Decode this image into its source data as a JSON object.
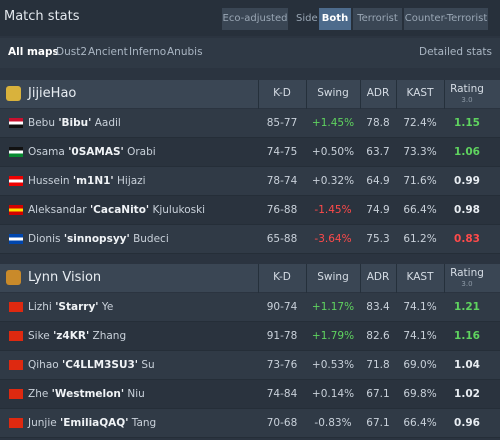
{
  "header": {
    "title": "Match stats",
    "eco": "Eco-adjusted",
    "side": "Side",
    "sides": [
      "Both",
      "Terrorist",
      "Counter-Terrorist"
    ]
  },
  "maps": {
    "items": [
      "All maps",
      "Dust2",
      "Ancient",
      "Inferno",
      "Anubis"
    ],
    "detailed": "Detailed stats"
  },
  "teams": [
    {
      "name": "JijieHao",
      "columns": [
        "K-D",
        "Swing",
        "ADR",
        "KAST",
        "Rating"
      ],
      "rating_version": "3.0",
      "players": [
        {
          "first": "Bebu",
          "nick": "'Bibu'",
          "last": "Aadil",
          "kd": "85-77",
          "swing": "+1.45%",
          "adr": 78.8,
          "kast": "72.4%",
          "rating": 1.15
        },
        {
          "first": "Osama",
          "nick": "'0SAMAS'",
          "last": "Orabi",
          "kd": "74-75",
          "swing": "+0.50%",
          "adr": 63.7,
          "kast": "73.3%",
          "rating": 1.06
        },
        {
          "first": "Hussein",
          "nick": "'m1N1'",
          "last": "Hijazi",
          "kd": "78-74",
          "swing": "+0.32%",
          "adr": 64.9,
          "kast": "71.6%",
          "rating": 0.99
        },
        {
          "first": "Aleksandar",
          "nick": "'CacaNito'",
          "last": "Kjulukoski",
          "kd": "76-88",
          "swing": "-1.45%",
          "adr": 74.9,
          "kast": "66.4%",
          "rating": 0.98
        },
        {
          "first": "Dionis",
          "nick": "'sinnopsyy'",
          "last": "Budeci",
          "kd": "65-88",
          "swing": "-3.64%",
          "adr": 75.3,
          "kast": "61.2%",
          "rating": 0.83
        }
      ]
    },
    {
      "name": "Lynn Vision",
      "columns": [
        "K-D",
        "Swing",
        "ADR",
        "KAST",
        "Rating"
      ],
      "rating_version": "3.0",
      "players": [
        {
          "first": "Lizhi",
          "nick": "'Starry'",
          "last": "Ye",
          "kd": "90-74",
          "swing": "+1.17%",
          "adr": 83.4,
          "kast": "74.1%",
          "rating": 1.21
        },
        {
          "first": "Sike",
          "nick": "'z4KR'",
          "last": "Zhang",
          "kd": "91-78",
          "swing": "+1.79%",
          "adr": 82.6,
          "kast": "74.1%",
          "rating": 1.16
        },
        {
          "first": "Qihao",
          "nick": "'C4LLM3SU3'",
          "last": "Su",
          "kd": "73-76",
          "swing": "+0.53%",
          "adr": 71.8,
          "kast": "69.0%",
          "rating": 1.04
        },
        {
          "first": "Zhe",
          "nick": "'Westmelon'",
          "last": "Niu",
          "kd": "74-84",
          "swing": "+0.14%",
          "adr": 67.1,
          "kast": "69.8%",
          "rating": 1.02
        },
        {
          "first": "Junjie",
          "nick": "'EmiliaQAQ'",
          "last": "Tang",
          "kd": "70-68",
          "swing": "-0.83%",
          "adr": 67.1,
          "kast": "66.4%",
          "rating": 0.96
        }
      ]
    }
  ]
}
